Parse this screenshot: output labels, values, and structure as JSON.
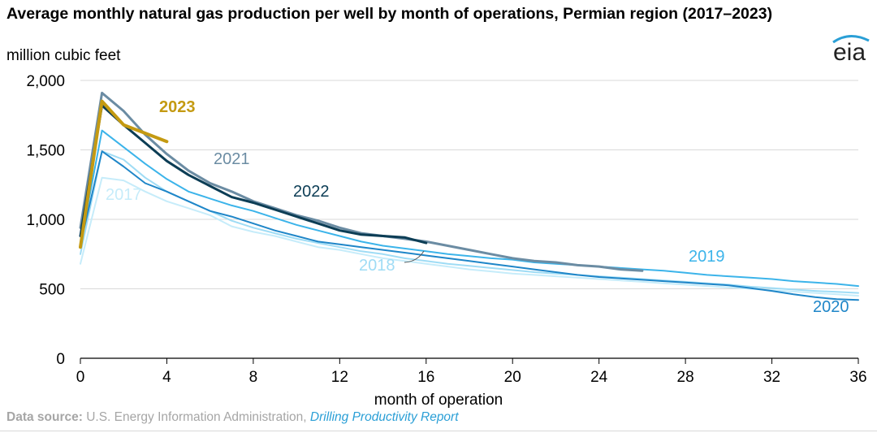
{
  "header": {
    "title": "Average monthly natural gas production per well by month of operations, Permian region (2017–2023)",
    "unit": "million cubic feet",
    "logo": "eia"
  },
  "footer": {
    "source_label": "Data source:",
    "source_text": "U.S. Energy Information Administration,",
    "source_link": "Drilling Productivity Report"
  },
  "chart_data": {
    "type": "line",
    "title": "Average monthly natural gas production per well by month of operations, Permian region (2017–2023)",
    "xlabel": "month of operation",
    "ylabel": "million cubic feet",
    "xlim": [
      0,
      36
    ],
    "ylim": [
      0,
      2000
    ],
    "xticks": [
      0,
      4,
      8,
      12,
      16,
      20,
      24,
      28,
      32,
      36
    ],
    "yticks": [
      0,
      500,
      1000,
      1500,
      2000
    ],
    "ytick_labels": [
      "0",
      "500",
      "1,000",
      "1,500",
      "2,000"
    ],
    "grid": "horizontal",
    "series": [
      {
        "name": "2017",
        "color": "#c6ecfa",
        "x": [
          0,
          1,
          2,
          3,
          4,
          5,
          6,
          7,
          8,
          9,
          10,
          11,
          12,
          13,
          14,
          15,
          16,
          17,
          18,
          19,
          20,
          21,
          22,
          23,
          24,
          25,
          26,
          27,
          28,
          29,
          30,
          31,
          32,
          33,
          34,
          35,
          36
        ],
        "values": [
          680,
          1300,
          1280,
          1200,
          1130,
          1080,
          1030,
          950,
          910,
          880,
          840,
          800,
          780,
          750,
          720,
          700,
          680,
          660,
          640,
          625,
          610,
          600,
          590,
          580,
          570,
          560,
          550,
          540,
          530,
          520,
          510,
          500,
          490,
          480,
          470,
          460,
          450
        ]
      },
      {
        "name": "2018",
        "color": "#9fdcf5",
        "x": [
          0,
          1,
          2,
          3,
          4,
          5,
          6,
          7,
          8,
          9,
          10,
          11,
          12,
          13,
          14,
          15,
          16,
          17,
          18,
          19,
          20,
          21,
          22,
          23,
          24,
          25,
          26,
          27,
          28,
          29,
          30,
          31,
          32,
          33,
          34,
          35,
          36
        ],
        "values": [
          750,
          1490,
          1430,
          1300,
          1200,
          1130,
          1060,
          990,
          940,
          900,
          860,
          830,
          800,
          770,
          750,
          720,
          700,
          680,
          665,
          650,
          635,
          620,
          610,
          600,
          590,
          580,
          570,
          560,
          550,
          540,
          530,
          515,
          505,
          495,
          485,
          478,
          470
        ]
      },
      {
        "name": "2019",
        "color": "#3cb4ea",
        "x": [
          0,
          1,
          2,
          3,
          4,
          5,
          6,
          7,
          8,
          9,
          10,
          11,
          12,
          13,
          14,
          15,
          16,
          17,
          18,
          19,
          20,
          21,
          22,
          23,
          24,
          25,
          26,
          27,
          28,
          29,
          30,
          31,
          32,
          33,
          34,
          35,
          36
        ],
        "values": [
          820,
          1640,
          1520,
          1400,
          1290,
          1200,
          1150,
          1100,
          1060,
          1010,
          960,
          920,
          880,
          840,
          810,
          790,
          770,
          750,
          735,
          720,
          710,
          690,
          680,
          670,
          660,
          650,
          640,
          630,
          615,
          600,
          590,
          580,
          570,
          555,
          545,
          535,
          520
        ]
      },
      {
        "name": "2020",
        "color": "#1f86c8",
        "x": [
          0,
          1,
          2,
          3,
          4,
          5,
          6,
          7,
          8,
          9,
          10,
          11,
          12,
          13,
          14,
          15,
          16,
          17,
          18,
          19,
          20,
          21,
          22,
          23,
          24,
          25,
          26,
          27,
          28,
          29,
          30,
          31,
          32,
          33,
          34,
          35,
          36
        ],
        "values": [
          820,
          1490,
          1380,
          1260,
          1200,
          1130,
          1060,
          1020,
          970,
          920,
          880,
          840,
          820,
          800,
          780,
          760,
          740,
          720,
          700,
          680,
          660,
          640,
          620,
          600,
          585,
          575,
          565,
          555,
          545,
          535,
          525,
          505,
          485,
          460,
          440,
          425,
          420
        ]
      },
      {
        "name": "2021",
        "color": "#6b8ca3",
        "x": [
          0,
          1,
          2,
          3,
          4,
          5,
          6,
          7,
          8,
          9,
          10,
          11,
          12,
          13,
          14,
          15,
          16,
          17,
          18,
          19,
          20,
          21,
          22,
          23,
          24,
          25,
          26
        ],
        "values": [
          940,
          1910,
          1780,
          1610,
          1470,
          1350,
          1260,
          1200,
          1130,
          1080,
          1030,
          990,
          940,
          900,
          880,
          860,
          840,
          810,
          780,
          750,
          720,
          700,
          690,
          670,
          660,
          640,
          630
        ]
      },
      {
        "name": "2022",
        "color": "#0c3d55",
        "x": [
          0,
          1,
          2,
          3,
          4,
          5,
          6,
          7,
          8,
          9,
          10,
          11,
          12,
          13,
          14,
          15,
          16
        ],
        "values": [
          880,
          1820,
          1680,
          1550,
          1420,
          1320,
          1240,
          1160,
          1120,
          1070,
          1020,
          970,
          920,
          890,
          880,
          870,
          830
        ]
      },
      {
        "name": "2023",
        "color": "#c49a12",
        "x": [
          0,
          1,
          2,
          3,
          4
        ],
        "values": [
          800,
          1850,
          1680,
          1620,
          1560
        ]
      }
    ],
    "annotations": [
      "2017",
      "2018",
      "2019",
      "2020",
      "2021",
      "2022",
      "2023"
    ]
  }
}
